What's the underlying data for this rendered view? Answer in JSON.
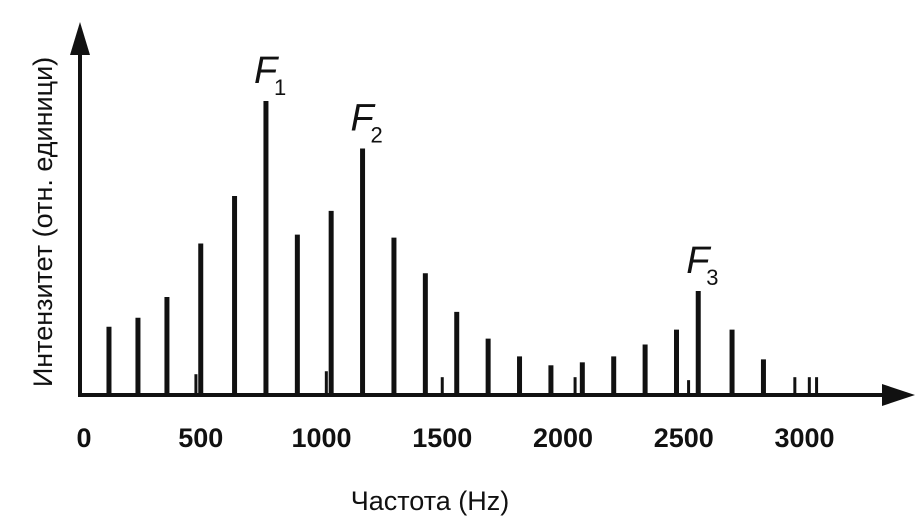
{
  "chart_data": {
    "type": "bar",
    "xlabel": "Частота (Hz)",
    "ylabel": "Интензитет (отн. единици)",
    "xlim": [
      0,
      3400
    ],
    "ylim": [
      0,
      100
    ],
    "x_ticks": [
      0,
      500,
      1000,
      1500,
      2000,
      2500,
      3000
    ],
    "x_tick_labels": [
      "0",
      "500",
      "1000",
      "1500",
      "2000",
      "2500",
      "3000"
    ],
    "harmonics": [
      {
        "x": 120,
        "y": 23
      },
      {
        "x": 240,
        "y": 26
      },
      {
        "x": 360,
        "y": 33
      },
      {
        "x": 480,
        "y": 7
      },
      {
        "x": 500,
        "y": 51
      },
      {
        "x": 640,
        "y": 67
      },
      {
        "x": 770,
        "y": 99
      },
      {
        "x": 900,
        "y": 54
      },
      {
        "x": 1020,
        "y": 8
      },
      {
        "x": 1040,
        "y": 62
      },
      {
        "x": 1170,
        "y": 83
      },
      {
        "x": 1300,
        "y": 53
      },
      {
        "x": 1430,
        "y": 41
      },
      {
        "x": 1500,
        "y": 6
      },
      {
        "x": 1560,
        "y": 28
      },
      {
        "x": 1690,
        "y": 19
      },
      {
        "x": 1820,
        "y": 13
      },
      {
        "x": 1950,
        "y": 10
      },
      {
        "x": 2050,
        "y": 6
      },
      {
        "x": 2080,
        "y": 11
      },
      {
        "x": 2210,
        "y": 13
      },
      {
        "x": 2340,
        "y": 17
      },
      {
        "x": 2470,
        "y": 22
      },
      {
        "x": 2520,
        "y": 5
      },
      {
        "x": 2560,
        "y": 35
      },
      {
        "x": 2700,
        "y": 22
      },
      {
        "x": 2830,
        "y": 12
      },
      {
        "x": 2960,
        "y": 6
      },
      {
        "x": 3020,
        "y": 6
      },
      {
        "x": 3050,
        "y": 6
      }
    ],
    "annotations": [
      {
        "symbol": "F",
        "sub": "1",
        "x": 770,
        "y": 99
      },
      {
        "symbol": "F",
        "sub": "2",
        "x": 1170,
        "y": 83
      },
      {
        "symbol": "F",
        "sub": "3",
        "x": 2560,
        "y": 35
      }
    ]
  }
}
